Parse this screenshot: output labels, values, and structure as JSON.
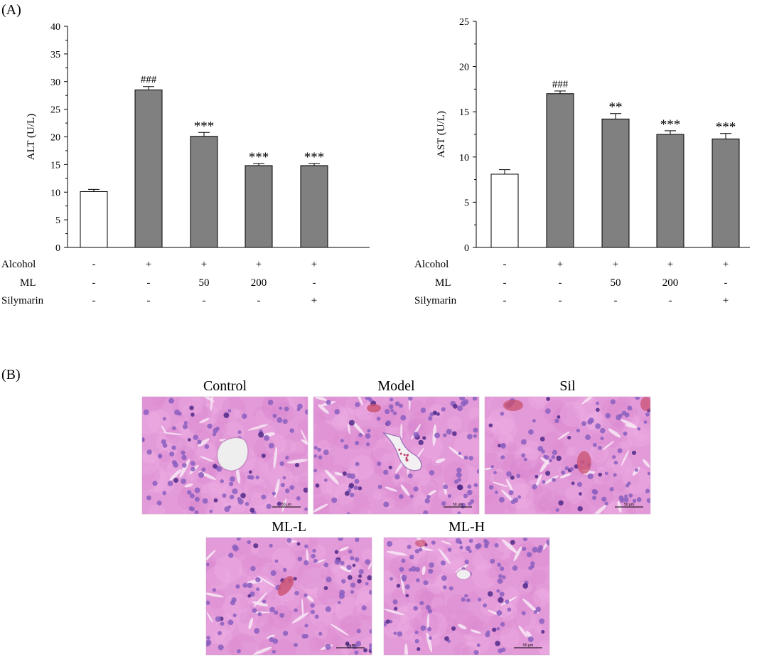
{
  "panel_labels": {
    "a": "(A)",
    "b": "(B)"
  },
  "conditions": {
    "labels": [
      "Alcohol",
      "ML",
      "Silymarin"
    ],
    "rows": [
      [
        "-",
        "+",
        "+",
        "+",
        "+"
      ],
      [
        "-",
        "-",
        "50",
        "200",
        "-"
      ],
      [
        "-",
        "-",
        "-",
        "-",
        "+"
      ]
    ]
  },
  "chart_data": [
    {
      "type": "bar",
      "title": "",
      "xlabel": "",
      "ylabel": "ALT (U/L)",
      "ylim": [
        0,
        40
      ],
      "yticks": [
        0,
        5,
        10,
        15,
        20,
        25,
        30,
        35,
        40
      ],
      "categories": [
        "",
        "",
        "",
        "",
        ""
      ],
      "values": [
        10.1,
        28.5,
        20.1,
        14.8,
        14.8
      ],
      "errors": [
        0.4,
        0.6,
        0.7,
        0.4,
        0.4
      ],
      "annotations": [
        "",
        "###",
        "***",
        "***",
        "***"
      ],
      "colors": [
        "#ffffff",
        "#808080",
        "#808080",
        "#808080",
        "#808080"
      ],
      "grid": false
    },
    {
      "type": "bar",
      "title": "",
      "xlabel": "",
      "ylabel": "AST (U/L)",
      "ylim": [
        0,
        25
      ],
      "yticks": [
        0,
        5,
        10,
        15,
        20,
        25
      ],
      "categories": [
        "",
        "",
        "",
        "",
        ""
      ],
      "values": [
        8.1,
        17.0,
        14.2,
        12.5,
        12.0
      ],
      "errors": [
        0.5,
        0.3,
        0.6,
        0.4,
        0.6
      ],
      "annotations": [
        "",
        "###",
        "**",
        "***",
        "***"
      ],
      "colors": [
        "#ffffff",
        "#808080",
        "#808080",
        "#808080",
        "#808080"
      ],
      "grid": false
    }
  ],
  "histology": [
    {
      "title": "Control",
      "scale_bar": "50 μm",
      "seed": 11,
      "vessel": "central"
    },
    {
      "title": "Model",
      "scale_bar": "50 μm",
      "seed": 23,
      "vessel": "congested"
    },
    {
      "title": "Sil",
      "scale_bar": "50 μm",
      "seed": 37,
      "vessel": "sinusoid"
    },
    {
      "title": "ML-L",
      "scale_bar": "50 μm",
      "seed": 41,
      "vessel": "small"
    },
    {
      "title": "ML-H",
      "scale_bar": "50 μm",
      "seed": 59,
      "vessel": "tiny"
    }
  ]
}
